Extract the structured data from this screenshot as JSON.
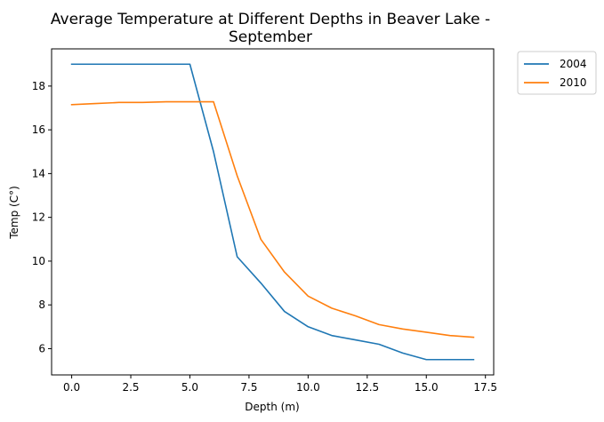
{
  "chart_data": {
    "type": "line",
    "title_line1": "Average Temperature at Different Depths in Beaver Lake -",
    "title_line2": "September",
    "xlabel": "Depth (m)",
    "ylabel": "Temp (C°)",
    "xlim": [
      -0.85,
      17.85
    ],
    "ylim": [
      4.8,
      19.7
    ],
    "xticks": [
      0,
      2.5,
      5,
      7.5,
      10,
      12.5,
      15,
      17.5
    ],
    "xtick_labels": [
      "0.0",
      "2.5",
      "5.0",
      "7.5",
      "10.0",
      "12.5",
      "15.0",
      "17.5"
    ],
    "yticks": [
      6,
      8,
      10,
      12,
      14,
      16,
      18
    ],
    "ytick_labels": [
      "6",
      "8",
      "10",
      "12",
      "14",
      "16",
      "18"
    ],
    "grid": false,
    "legend_position": "outside-top-right",
    "series": [
      {
        "name": "2004",
        "color": "#1f77b4",
        "x": [
          0,
          1,
          2,
          3,
          4,
          5,
          6,
          7,
          8,
          9,
          10,
          11,
          12,
          13,
          14,
          15,
          16,
          17
        ],
        "y": [
          19.0,
          19.0,
          19.0,
          19.0,
          19.0,
          19.0,
          15.0,
          10.2,
          9.0,
          7.7,
          7.0,
          6.6,
          6.4,
          6.2,
          5.8,
          5.5,
          5.5,
          5.5
        ]
      },
      {
        "name": "2010",
        "color": "#ff7f0e",
        "x": [
          0,
          1,
          2,
          3,
          4,
          5,
          6,
          7,
          8,
          9,
          10,
          11,
          12,
          13,
          14,
          15,
          16,
          17
        ],
        "y": [
          17.15,
          17.2,
          17.25,
          17.25,
          17.28,
          17.28,
          17.28,
          13.9,
          11.0,
          9.5,
          8.4,
          7.85,
          7.5,
          7.1,
          6.9,
          6.75,
          6.6,
          6.52
        ]
      }
    ]
  }
}
